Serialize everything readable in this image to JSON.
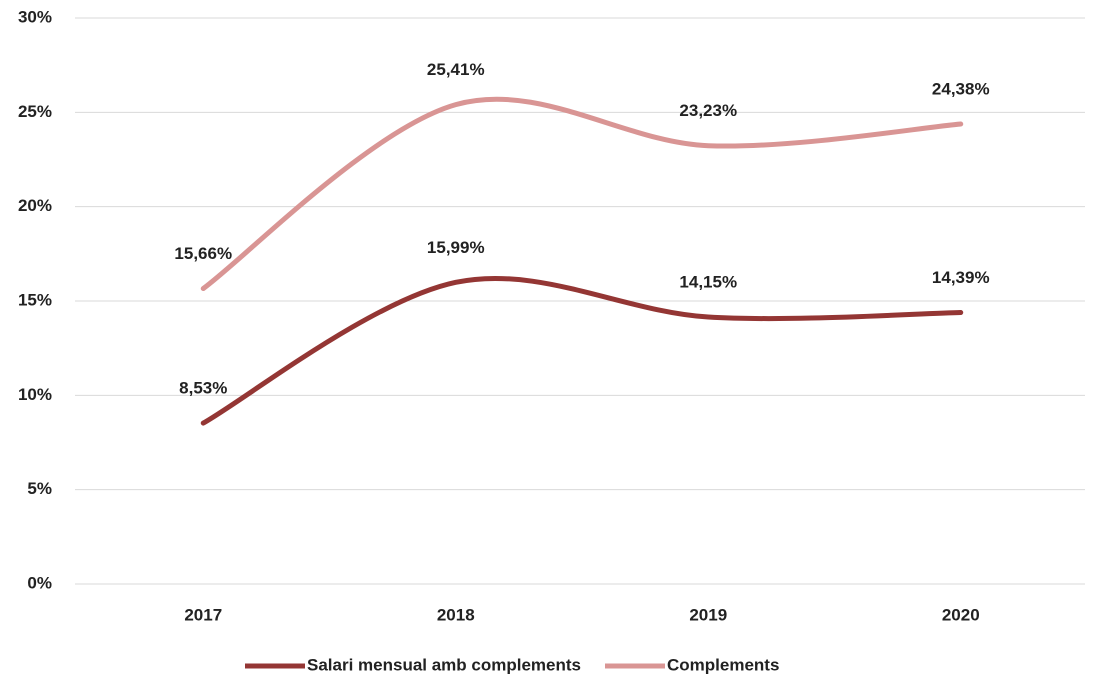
{
  "chart_data": {
    "type": "line",
    "categories": [
      "2017",
      "2018",
      "2019",
      "2020"
    ],
    "series": [
      {
        "name": "Salari mensual amb complements",
        "color": "#943634",
        "values": [
          8.53,
          15.99,
          14.15,
          14.39
        ],
        "value_labels": [
          "8,53%",
          "15,99%",
          "14,15%",
          "14,39%"
        ]
      },
      {
        "name": "Complements",
        "color": "#d99594",
        "values": [
          15.66,
          25.41,
          23.23,
          24.38
        ],
        "value_labels": [
          "15,66%",
          "25,41%",
          "23,23%",
          "24,38%"
        ]
      }
    ],
    "ylim": [
      0,
      30
    ],
    "yticks": [
      {
        "value": 0,
        "label": "0%"
      },
      {
        "value": 5,
        "label": "5%"
      },
      {
        "value": 10,
        "label": "10%"
      },
      {
        "value": 15,
        "label": "15%"
      },
      {
        "value": 20,
        "label": "20%"
      },
      {
        "value": 25,
        "label": "25%"
      },
      {
        "value": 30,
        "label": "30%"
      }
    ],
    "grid": true,
    "smooth": true,
    "legend": "bottom"
  }
}
